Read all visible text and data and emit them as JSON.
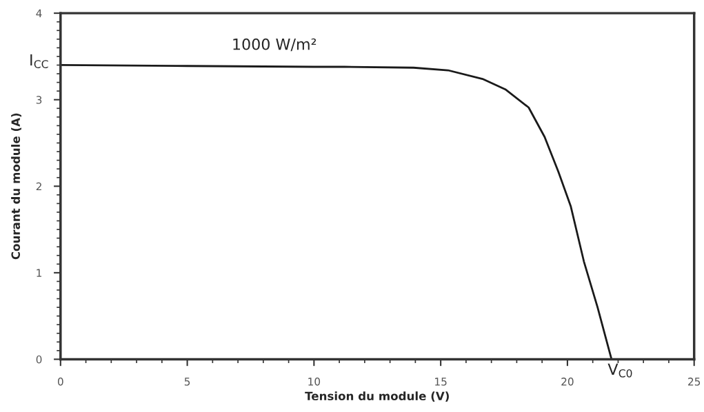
{
  "chart_data": {
    "type": "line",
    "xlabel": "Tension du module (V)",
    "ylabel": "Courant du module (A)",
    "series": [
      {
        "color": "#1a1a1a",
        "x": [
          0,
          5,
          10,
          11.21,
          13.93,
          15.29,
          16.65,
          17.55,
          18.47,
          19.1,
          19.64,
          20.13,
          20.65,
          21.19,
          21.74
        ],
        "values": [
          3.4,
          3.39,
          3.38,
          3.38,
          3.37,
          3.34,
          3.24,
          3.12,
          2.91,
          2.57,
          2.17,
          1.77,
          1.13,
          0.6,
          0
        ]
      }
    ],
    "xlim": [
      0,
      25
    ],
    "xticks": [
      0,
      5,
      10,
      15,
      20,
      25
    ],
    "ylim": [
      0,
      4
    ],
    "yticks": [
      0,
      1,
      2,
      3,
      4
    ],
    "annotations": [
      "1000 W/m²",
      {
        "text": "I$_{CC}$",
        "x": 0,
        "y": 3.4
      },
      {
        "text": "V$_{C0}$",
        "x": 21.74,
        "y": 0
      }
    ],
    "marker": "none",
    "line_style": "solid"
  }
}
